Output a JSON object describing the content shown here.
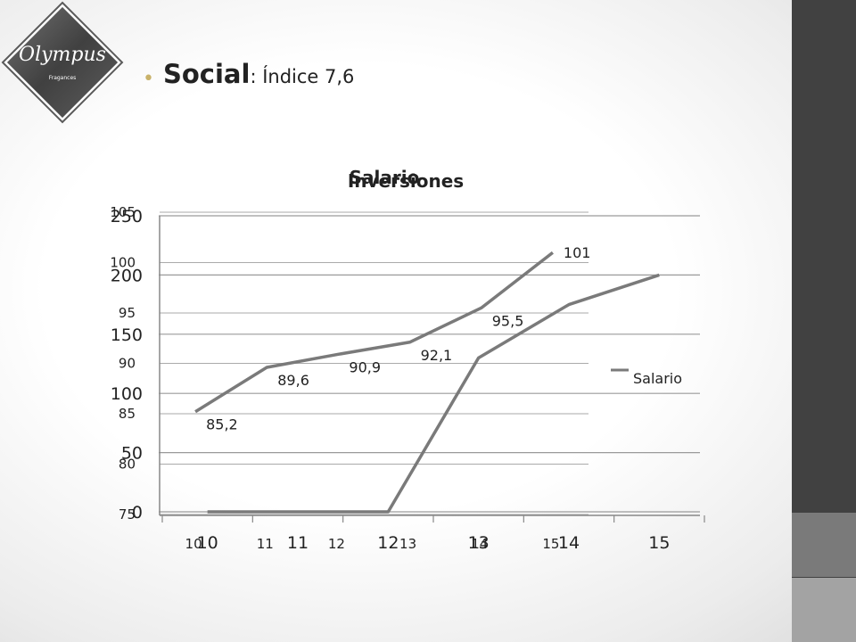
{
  "slide": {
    "title_strong": "Social",
    "title_rest": ": Índice 7,6",
    "logo_text": "Olympus",
    "logo_sub": "Fragances",
    "bullet_color": "#c9b26a"
  },
  "chart_data": [
    {
      "type": "line",
      "title": "Salario",
      "categories": [
        "10",
        "11",
        "12",
        "13",
        "14",
        "15"
      ],
      "series": [
        {
          "name": "Salario",
          "values": [
            85.2,
            89.6,
            90.9,
            92.1,
            95.5,
            101
          ],
          "labels": [
            "85,2",
            "89,6",
            "90,9",
            "92,1",
            "95,5",
            "101"
          ]
        }
      ],
      "ylim": [
        75,
        105
      ],
      "yticks": [
        "75",
        "80",
        "85",
        "90",
        "95",
        "100",
        "105"
      ],
      "line_color": "#7a7a7a",
      "grid": true
    },
    {
      "type": "line",
      "title": "Inversiones",
      "categories": [
        "10",
        "11",
        "12",
        "13",
        "14",
        "15"
      ],
      "series": [
        {
          "name": "Salario",
          "values": [
            0,
            0,
            0,
            130,
            175,
            200
          ]
        }
      ],
      "ylim": [
        0,
        250
      ],
      "yticks": [
        "0",
        "50",
        "100",
        "150",
        "200",
        "250"
      ],
      "legend": "right",
      "line_color": "#7a7a7a",
      "grid": true
    }
  ]
}
